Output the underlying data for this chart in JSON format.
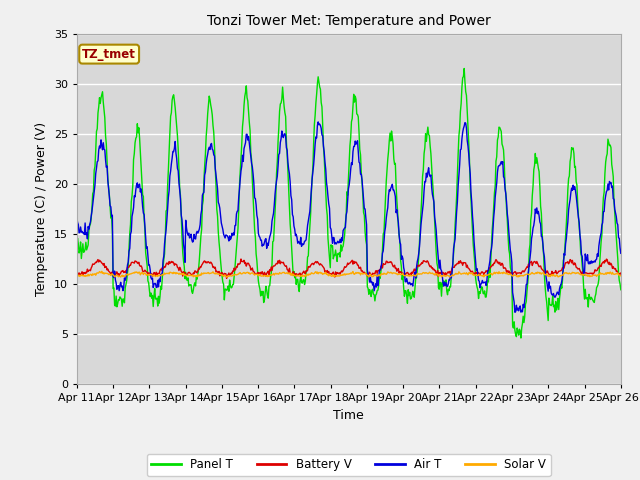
{
  "title": "Tonzi Tower Met: Temperature and Power",
  "xlabel": "Time",
  "ylabel": "Temperature (C) / Power (V)",
  "ylim": [
    0,
    35
  ],
  "yticks": [
    0,
    5,
    10,
    15,
    20,
    25,
    30,
    35
  ],
  "plot_bg": "#d8d8d8",
  "fig_bg": "#f0f0f0",
  "colors": {
    "Panel T": "#00dd00",
    "Battery V": "#dd0000",
    "Air T": "#0000dd",
    "Solar V": "#ffaa00"
  },
  "legend_label": "TZ_tmet",
  "panel_peaks": [
    29.3,
    25.5,
    28.7,
    28.3,
    29.4,
    29.1,
    30.5,
    28.6,
    25.0,
    25.3,
    30.8,
    25.5,
    22.5,
    23.5,
    24.0
  ],
  "air_peaks": [
    24.0,
    20.2,
    23.5,
    23.8,
    24.7,
    25.2,
    26.2,
    24.0,
    19.8,
    21.4,
    26.0,
    22.3,
    17.2,
    19.7,
    20.0
  ],
  "panel_lows": [
    13.5,
    8.0,
    8.5,
    9.8,
    9.5,
    9.0,
    10.0,
    13.0,
    9.0,
    8.7,
    9.5,
    9.0,
    5.2,
    8.0,
    8.3
  ],
  "air_lows": [
    15.0,
    9.8,
    10.0,
    14.5,
    14.5,
    14.0,
    14.0,
    14.0,
    10.0,
    10.0,
    10.0,
    10.0,
    7.5,
    9.0,
    12.0
  ],
  "n_points": 720
}
